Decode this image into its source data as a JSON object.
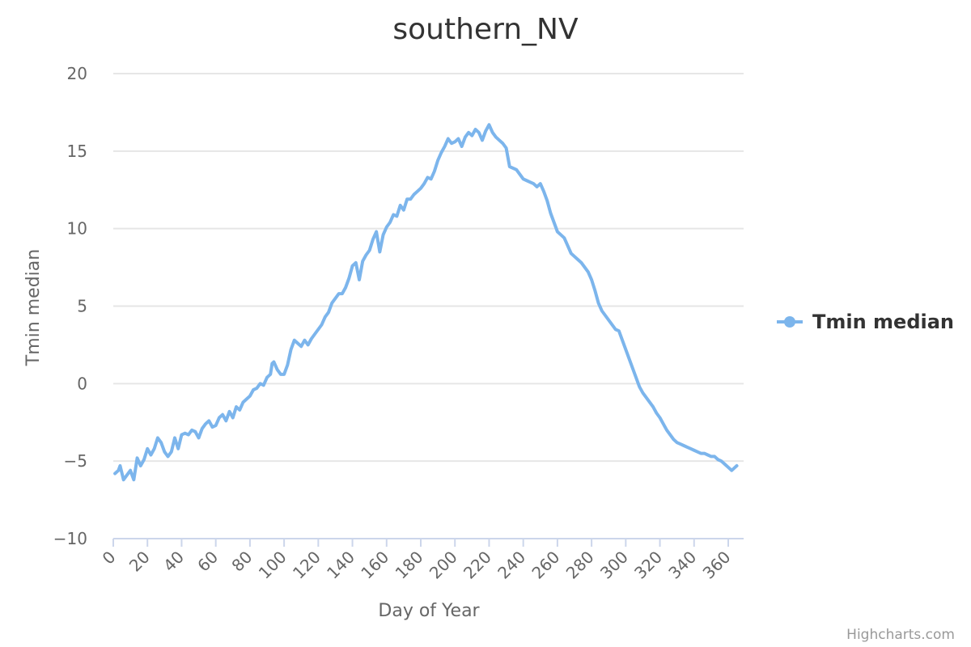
{
  "chart_data": {
    "type": "line",
    "title": "southern_NV",
    "xlabel": "Day of Year",
    "ylabel": "Tmin median",
    "xlim": [
      1,
      365
    ],
    "ylim": [
      -10,
      20
    ],
    "x_ticks": [
      "0",
      "20",
      "40",
      "60",
      "80",
      "100",
      "120",
      "140",
      "160",
      "180",
      "200",
      "220",
      "240",
      "260",
      "280",
      "300",
      "320",
      "340",
      "360"
    ],
    "y_ticks": [
      "20",
      "15",
      "10",
      "5",
      "0",
      "−5",
      "−10"
    ],
    "grid": "horizontal",
    "legend_position": "right",
    "series": [
      {
        "name": "Tmin median",
        "color": "#7cb5ec",
        "key_points": [
          [
            1,
            -5.8
          ],
          [
            3,
            -5.6
          ],
          [
            4,
            -5.3
          ],
          [
            6,
            -6.2
          ],
          [
            8,
            -5.9
          ],
          [
            10,
            -5.6
          ],
          [
            12,
            -6.2
          ],
          [
            14,
            -4.8
          ],
          [
            16,
            -5.3
          ],
          [
            18,
            -4.9
          ],
          [
            20,
            -4.2
          ],
          [
            22,
            -4.6
          ],
          [
            24,
            -4.2
          ],
          [
            26,
            -3.5
          ],
          [
            28,
            -3.8
          ],
          [
            30,
            -4.4
          ],
          [
            32,
            -4.7
          ],
          [
            34,
            -4.4
          ],
          [
            36,
            -3.5
          ],
          [
            38,
            -4.2
          ],
          [
            40,
            -3.3
          ],
          [
            42,
            -3.2
          ],
          [
            44,
            -3.3
          ],
          [
            46,
            -3.0
          ],
          [
            48,
            -3.1
          ],
          [
            50,
            -3.5
          ],
          [
            52,
            -2.9
          ],
          [
            54,
            -2.6
          ],
          [
            56,
            -2.4
          ],
          [
            58,
            -2.8
          ],
          [
            60,
            -2.7
          ],
          [
            62,
            -2.2
          ],
          [
            64,
            -2.0
          ],
          [
            66,
            -2.4
          ],
          [
            68,
            -1.8
          ],
          [
            70,
            -2.2
          ],
          [
            72,
            -1.5
          ],
          [
            74,
            -1.7
          ],
          [
            76,
            -1.2
          ],
          [
            78,
            -1.0
          ],
          [
            80,
            -0.8
          ],
          [
            82,
            -0.4
          ],
          [
            84,
            -0.3
          ],
          [
            86,
            0.0
          ],
          [
            88,
            -0.1
          ],
          [
            90,
            0.4
          ],
          [
            92,
            0.6
          ],
          [
            93,
            1.3
          ],
          [
            94,
            1.4
          ],
          [
            96,
            0.9
          ],
          [
            98,
            0.6
          ],
          [
            100,
            0.6
          ],
          [
            102,
            1.2
          ],
          [
            104,
            2.2
          ],
          [
            106,
            2.8
          ],
          [
            108,
            2.6
          ],
          [
            110,
            2.4
          ],
          [
            112,
            2.8
          ],
          [
            114,
            2.5
          ],
          [
            116,
            2.9
          ],
          [
            118,
            3.2
          ],
          [
            120,
            3.5
          ],
          [
            122,
            3.8
          ],
          [
            124,
            4.3
          ],
          [
            126,
            4.6
          ],
          [
            128,
            5.2
          ],
          [
            130,
            5.5
          ],
          [
            132,
            5.8
          ],
          [
            134,
            5.8
          ],
          [
            136,
            6.2
          ],
          [
            138,
            6.8
          ],
          [
            140,
            7.6
          ],
          [
            142,
            7.8
          ],
          [
            144,
            6.7
          ],
          [
            146,
            7.9
          ],
          [
            148,
            8.3
          ],
          [
            150,
            8.6
          ],
          [
            152,
            9.3
          ],
          [
            154,
            9.8
          ],
          [
            156,
            8.5
          ],
          [
            158,
            9.6
          ],
          [
            160,
            10.1
          ],
          [
            162,
            10.4
          ],
          [
            164,
            10.9
          ],
          [
            166,
            10.8
          ],
          [
            168,
            11.5
          ],
          [
            170,
            11.2
          ],
          [
            172,
            11.9
          ],
          [
            174,
            11.9
          ],
          [
            176,
            12.2
          ],
          [
            178,
            12.4
          ],
          [
            180,
            12.6
          ],
          [
            182,
            12.9
          ],
          [
            184,
            13.3
          ],
          [
            186,
            13.2
          ],
          [
            188,
            13.7
          ],
          [
            190,
            14.4
          ],
          [
            192,
            14.9
          ],
          [
            194,
            15.3
          ],
          [
            196,
            15.8
          ],
          [
            198,
            15.5
          ],
          [
            200,
            15.6
          ],
          [
            202,
            15.8
          ],
          [
            204,
            15.3
          ],
          [
            206,
            15.9
          ],
          [
            208,
            16.2
          ],
          [
            210,
            16.0
          ],
          [
            212,
            16.4
          ],
          [
            214,
            16.2
          ],
          [
            216,
            15.7
          ],
          [
            218,
            16.3
          ],
          [
            220,
            16.7
          ],
          [
            222,
            16.2
          ],
          [
            224,
            15.9
          ],
          [
            226,
            15.7
          ],
          [
            228,
            15.5
          ],
          [
            230,
            15.2
          ],
          [
            232,
            14.0
          ],
          [
            234,
            13.9
          ],
          [
            236,
            13.8
          ],
          [
            238,
            13.5
          ],
          [
            240,
            13.2
          ],
          [
            242,
            13.1
          ],
          [
            244,
            13.0
          ],
          [
            246,
            12.9
          ],
          [
            248,
            12.7
          ],
          [
            250,
            12.9
          ],
          [
            252,
            12.4
          ],
          [
            254,
            11.8
          ],
          [
            256,
            11.0
          ],
          [
            258,
            10.4
          ],
          [
            260,
            9.8
          ],
          [
            262,
            9.6
          ],
          [
            264,
            9.4
          ],
          [
            266,
            8.9
          ],
          [
            268,
            8.4
          ],
          [
            270,
            8.2
          ],
          [
            272,
            8.0
          ],
          [
            274,
            7.8
          ],
          [
            276,
            7.5
          ],
          [
            278,
            7.2
          ],
          [
            280,
            6.7
          ],
          [
            282,
            6.0
          ],
          [
            284,
            5.2
          ],
          [
            286,
            4.7
          ],
          [
            288,
            4.4
          ],
          [
            290,
            4.1
          ],
          [
            292,
            3.8
          ],
          [
            294,
            3.5
          ],
          [
            296,
            3.4
          ],
          [
            298,
            2.8
          ],
          [
            300,
            2.2
          ],
          [
            302,
            1.6
          ],
          [
            304,
            1.0
          ],
          [
            306,
            0.4
          ],
          [
            308,
            -0.2
          ],
          [
            310,
            -0.6
          ],
          [
            312,
            -0.9
          ],
          [
            314,
            -1.2
          ],
          [
            316,
            -1.5
          ],
          [
            318,
            -1.9
          ],
          [
            320,
            -2.2
          ],
          [
            322,
            -2.6
          ],
          [
            324,
            -3.0
          ],
          [
            326,
            -3.3
          ],
          [
            328,
            -3.6
          ],
          [
            330,
            -3.8
          ],
          [
            332,
            -3.9
          ],
          [
            334,
            -4.0
          ],
          [
            336,
            -4.1
          ],
          [
            338,
            -4.2
          ],
          [
            340,
            -4.3
          ],
          [
            342,
            -4.4
          ],
          [
            344,
            -4.5
          ],
          [
            346,
            -4.5
          ],
          [
            348,
            -4.6
          ],
          [
            350,
            -4.7
          ],
          [
            352,
            -4.7
          ],
          [
            354,
            -4.9
          ],
          [
            356,
            -5.0
          ],
          [
            358,
            -5.2
          ],
          [
            360,
            -5.4
          ],
          [
            362,
            -5.6
          ],
          [
            364,
            -5.4
          ],
          [
            365,
            -5.3
          ]
        ]
      }
    ]
  },
  "credits": "Highcharts.com"
}
